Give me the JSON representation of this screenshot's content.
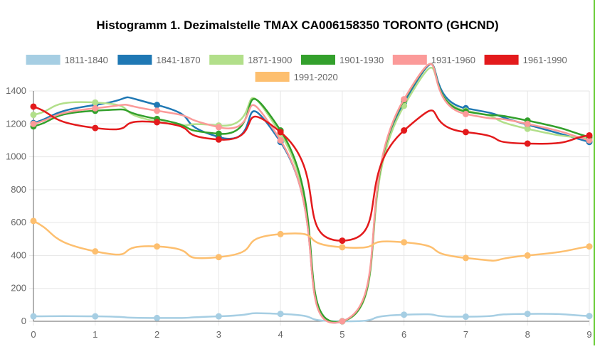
{
  "colors": {
    "s1811": "#a6cee3",
    "s1841": "#1f78b4",
    "s1871": "#b2df8a",
    "s1901": "#33a02c",
    "s1931": "#fb9a99",
    "s1961": "#e31a1c",
    "s1991": "#fdbf6f",
    "grid": "#e6e6e6",
    "axis": "#666666",
    "text": "#666666",
    "title": "#000000",
    "right_border": "#66cc33"
  },
  "chart_data": {
    "type": "line",
    "title": "Histogramm 1. Dezimalstelle TMAX CA006158350 TORONTO (GHCND)",
    "xlabel": "",
    "ylabel": "",
    "x": [
      0,
      1,
      2,
      3,
      4,
      5,
      6,
      7,
      8,
      9
    ],
    "xlim": [
      0,
      9
    ],
    "ylim": [
      0,
      1400
    ],
    "y_ticks": [
      0,
      200,
      400,
      600,
      800,
      1000,
      1200,
      1400
    ],
    "grid": true,
    "legend_position": "top",
    "smooth": true,
    "series": [
      {
        "name": "1811-1840",
        "color_key": "s1811",
        "values": [
          30,
          30,
          20,
          30,
          45,
          0,
          40,
          28,
          45,
          32
        ]
      },
      {
        "name": "1841-1870",
        "color_key": "s1841",
        "values": [
          1205,
          1315,
          1315,
          1120,
          1090,
          0,
          1330,
          1295,
          1195,
          1090
        ]
      },
      {
        "name": "1871-1900",
        "color_key": "s1871",
        "values": [
          1255,
          1330,
          1215,
          1190,
          1140,
          0,
          1310,
          1280,
          1170,
          1110
        ]
      },
      {
        "name": "1901-1930",
        "color_key": "s1901",
        "values": [
          1185,
          1280,
          1230,
          1140,
          1160,
          0,
          1345,
          1275,
          1220,
          1120
        ]
      },
      {
        "name": "1931-1960",
        "color_key": "s1931",
        "values": [
          1200,
          1295,
          1280,
          1180,
          1100,
          0,
          1350,
          1260,
          1200,
          1100
        ]
      },
      {
        "name": "1961-1990",
        "color_key": "s1961",
        "values": [
          1305,
          1175,
          1210,
          1105,
          1150,
          490,
          1160,
          1150,
          1080,
          1130
        ]
      },
      {
        "name": "1991-2020",
        "color_key": "s1991",
        "values": [
          610,
          425,
          455,
          390,
          530,
          450,
          480,
          385,
          400,
          455
        ]
      }
    ]
  }
}
